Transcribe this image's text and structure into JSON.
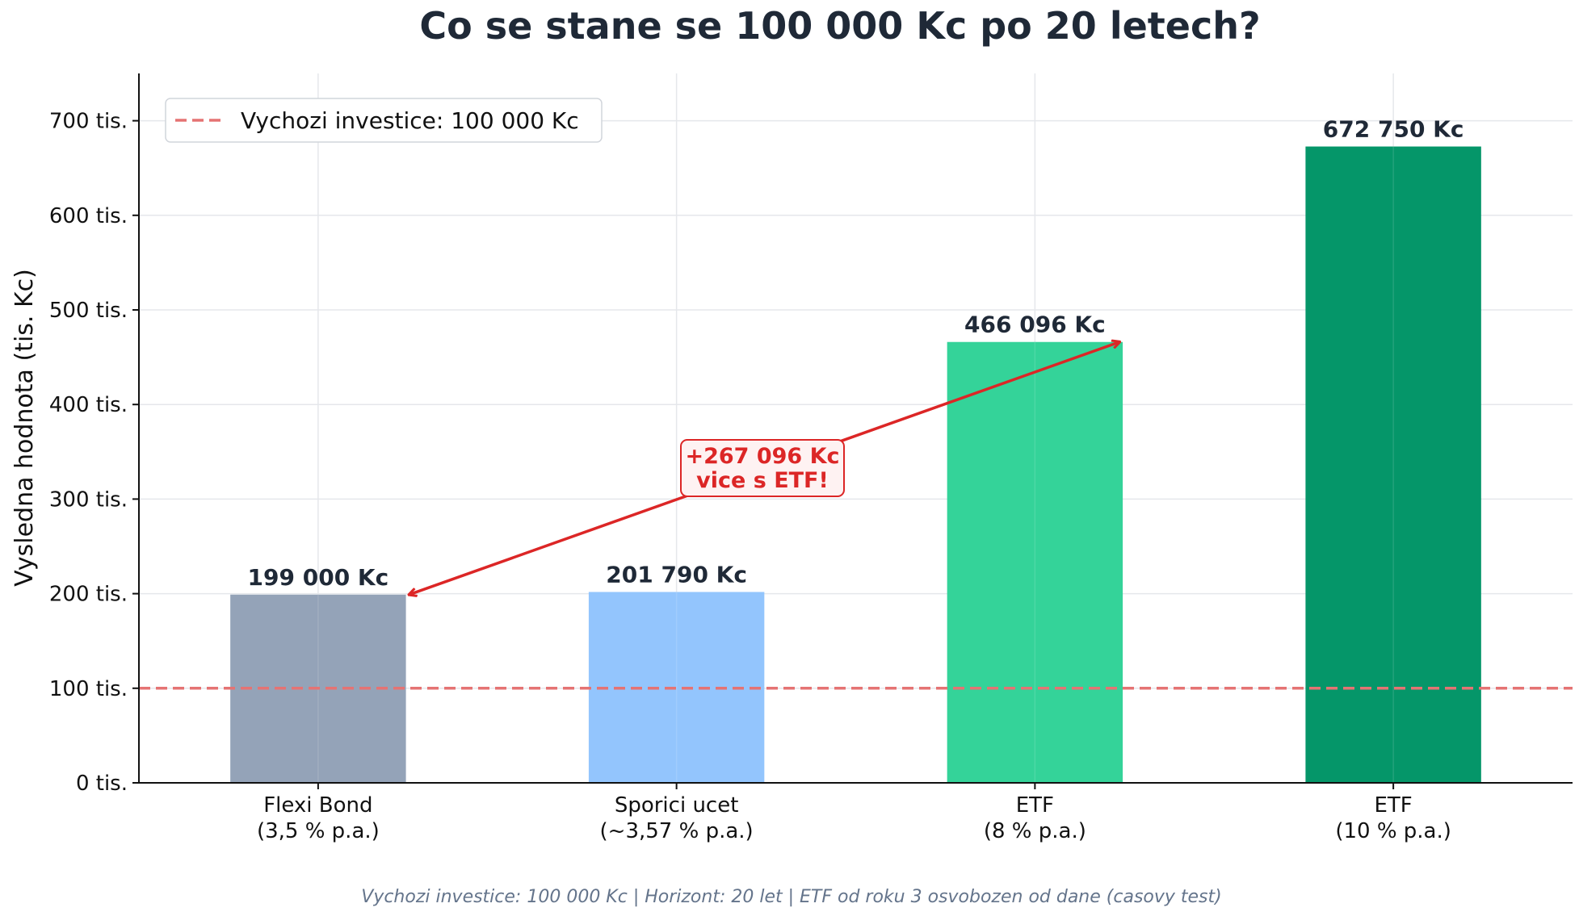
{
  "chart_data": {
    "type": "bar",
    "title": "Co se stane se 100 000 Kc po 20 letech?",
    "ylabel": "Vysledna hodnota (tis. Kc)",
    "xlabel": "",
    "ylim": [
      0,
      750
    ],
    "y_ticks": [
      0,
      100,
      200,
      300,
      400,
      500,
      600,
      700
    ],
    "y_tick_suffix": " tis.",
    "grid": true,
    "categories": [
      [
        "Flexi Bond",
        "(3,5 % p.a.)"
      ],
      [
        "Sporici ucet",
        "(~3,57 % p.a.)"
      ],
      [
        "ETF",
        "(8 % p.a.)"
      ],
      [
        "ETF",
        "(10 % p.a.)"
      ]
    ],
    "values": [
      199.0,
      201.79,
      466.096,
      672.75
    ],
    "value_labels": [
      "199 000 Kc",
      "201 790 Kc",
      "466 096 Kc",
      "672 750 Kc"
    ],
    "colors": [
      "#94a3b8",
      "#93c5fd",
      "#34d399",
      "#059669"
    ],
    "reference_line": {
      "value": 100,
      "label": "Vychozi investice: 100 000 Kc",
      "color": "#e57373"
    },
    "legend_position": "top-left",
    "annotation": {
      "lines": [
        "+267 096 Kc",
        "vice s ETF!"
      ],
      "color": "#dc2626",
      "from_bar": 0,
      "to_bar": 2
    },
    "footnote": "Vychozi investice: 100 000 Kc | Horizont: 20 let | ETF od roku 3 osvobozen od dane (casovy test)"
  }
}
